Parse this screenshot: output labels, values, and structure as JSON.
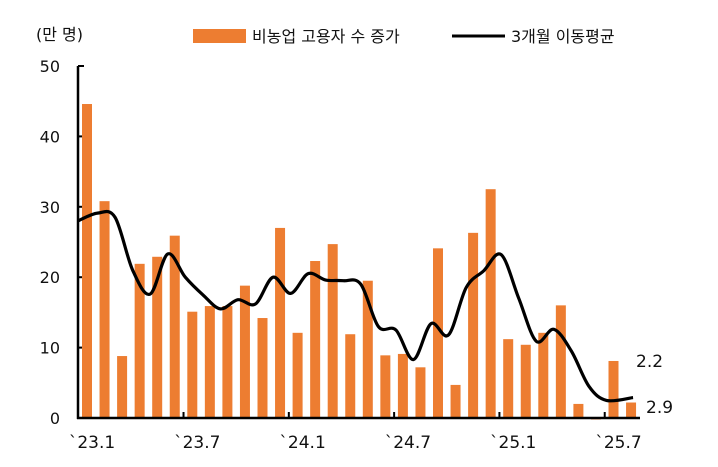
{
  "chart_data": {
    "type": "bar",
    "unit_label": "(만 명)",
    "ylim": [
      0,
      50
    ],
    "yticks": [
      0,
      10,
      20,
      30,
      40,
      50
    ],
    "xtick_labels": [
      {
        "label": "`23.1",
        "index": 0
      },
      {
        "label": "`23.7",
        "index": 6
      },
      {
        "label": "`24.1",
        "index": 12
      },
      {
        "label": "`24.7",
        "index": 18
      },
      {
        "label": "`25.1",
        "index": 24
      },
      {
        "label": "`25.7",
        "index": 30
      }
    ],
    "categories": [
      "23.1",
      "23.2",
      "23.3",
      "23.4",
      "23.5",
      "23.6",
      "23.7",
      "23.8",
      "23.9",
      "23.10",
      "23.11",
      "23.12",
      "24.1",
      "24.2",
      "24.3",
      "24.4",
      "24.5",
      "24.6",
      "24.7",
      "24.8",
      "24.9",
      "24.10",
      "24.11",
      "24.12",
      "25.1",
      "25.2",
      "25.3",
      "25.4",
      "25.5",
      "25.6",
      "25.7",
      "25.8"
    ],
    "series": [
      {
        "name": "비농업 고용자 수 증가",
        "type": "bar",
        "color": "#ED7D31",
        "values": [
          44.6,
          30.8,
          8.8,
          21.9,
          22.9,
          25.9,
          15.1,
          15.9,
          15.9,
          18.8,
          14.2,
          27.0,
          12.1,
          22.3,
          24.7,
          11.9,
          19.5,
          8.9,
          9.1,
          7.2,
          24.1,
          4.7,
          26.3,
          32.5,
          11.2,
          10.4,
          12.1,
          16.0,
          2.0,
          -0.1,
          8.1,
          2.2
        ]
      },
      {
        "name": "3개월 이동평균",
        "type": "line",
        "color": "#000000",
        "values": [
          28.0,
          29.1,
          28.5,
          21.0,
          17.6,
          23.3,
          20.0,
          17.5,
          15.5,
          16.8,
          16.2,
          20.0,
          17.7,
          20.5,
          19.6,
          19.5,
          19.0,
          13.0,
          12.5,
          8.3,
          13.4,
          11.8,
          18.5,
          20.9,
          23.2,
          17.0,
          10.9,
          12.6,
          9.5,
          4.5,
          2.5,
          2.9
        ]
      }
    ],
    "annotations": [
      "2.2",
      "2.9"
    ]
  }
}
